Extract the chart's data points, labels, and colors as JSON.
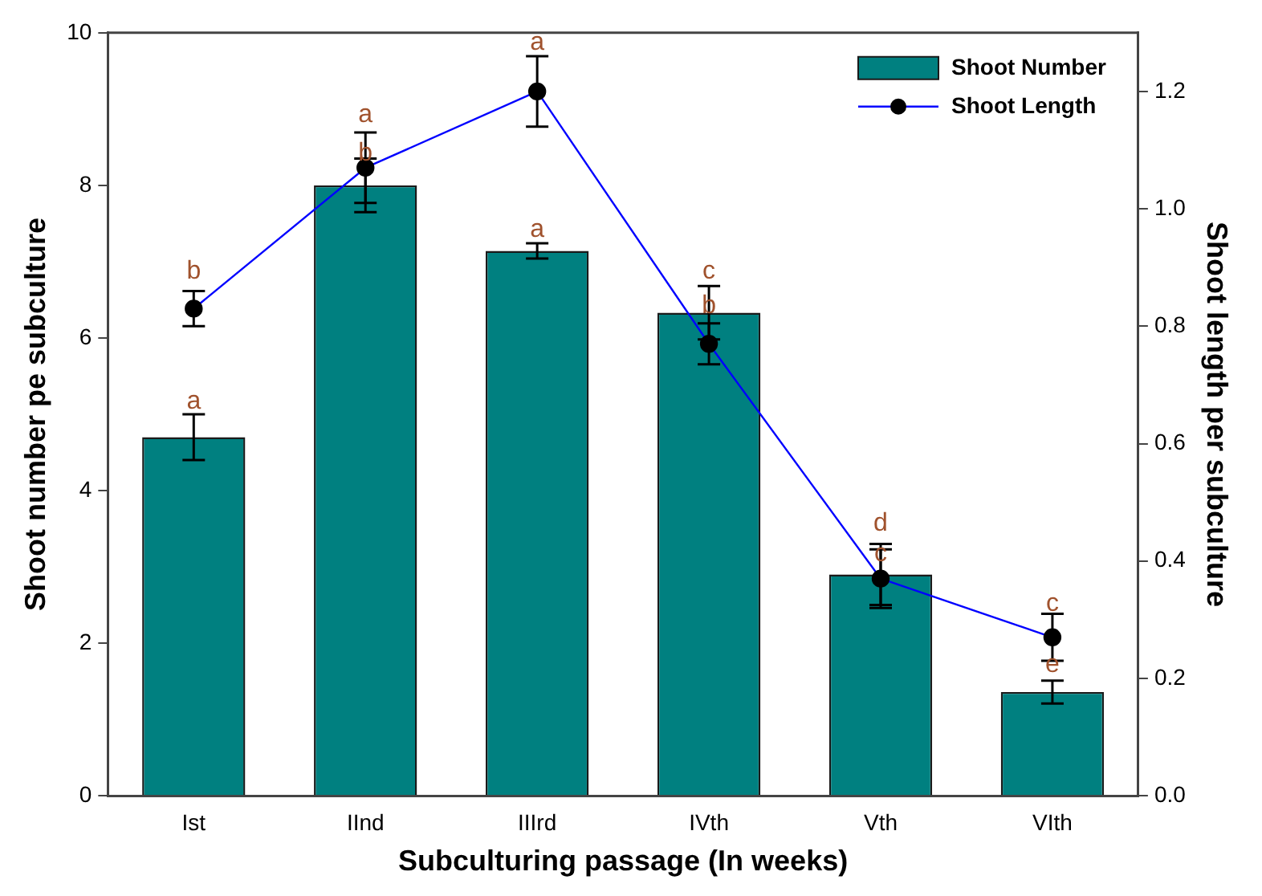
{
  "chart_data": {
    "type": "bar",
    "xlabel": "Subculturing passage (In weeks)",
    "ylabel": "Shoot number pe subculture",
    "y2label": "Shoot length per subculture",
    "categories": [
      "Ist",
      "IInd",
      "IIIrd",
      "IVth",
      "Vth",
      "VIth"
    ],
    "series": [
      {
        "name": "Shoot Number",
        "color": "#008080",
        "values": [
          4.7,
          8.0,
          7.14,
          6.33,
          2.9,
          1.36
        ],
        "errors": [
          0.3,
          0.35,
          0.1,
          0.35,
          0.4,
          0.15
        ]
      },
      {
        "name": "Shoot Length",
        "type": "line",
        "axis": "y2",
        "color": "#0000ff",
        "values": [
          0.83,
          1.07,
          1.2,
          0.77,
          0.37,
          0.27
        ],
        "errors": [
          0.03,
          0.06,
          0.06,
          0.035,
          0.05,
          0.04
        ]
      }
    ],
    "ylim": [
      0,
      10
    ],
    "yticks": [
      0,
      2,
      4,
      6,
      8,
      10
    ],
    "y2lim": [
      0,
      1.3
    ],
    "y2ticks": [
      {
        "value": 0,
        "label": "0.0"
      },
      0.2,
      0.4,
      0.6,
      0.8,
      {
        "value": 1,
        "label": "1.0"
      },
      1.2
    ],
    "annotations": [
      {
        "text": "a",
        "x": "Ist",
        "y": 5.0
      },
      {
        "text": "b",
        "x": "Ist",
        "y": 6.7
      },
      {
        "text": "a",
        "x": "IInd",
        "y": 8.75
      },
      {
        "text": "b",
        "x": "IInd",
        "y": 8.25
      },
      {
        "text": "a",
        "x": "IIIrd",
        "y": 9.7
      },
      {
        "text": "a",
        "x": "IIIrd",
        "y": 7.25
      },
      {
        "text": "c",
        "x": "IVth",
        "y": 6.7
      },
      {
        "text": "b",
        "x": "IVth",
        "y": 6.25
      },
      {
        "text": "d",
        "x": "Vth",
        "y": 3.4
      },
      {
        "text": "c",
        "x": "Vth",
        "y": 3.0
      },
      {
        "text": "c",
        "x": "VIth",
        "y": 2.35
      },
      {
        "text": "e",
        "x": "VIth",
        "y": 1.55
      }
    ],
    "marker": "circle",
    "grid": false,
    "legend": "top right"
  }
}
